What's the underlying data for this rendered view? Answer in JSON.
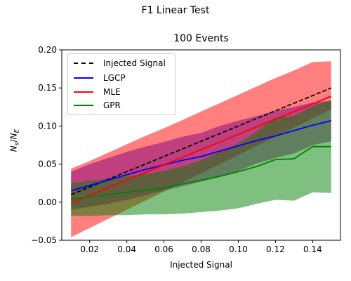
{
  "figure": {
    "suptitle": "F1 Linear Test"
  },
  "chart_data": {
    "type": "line",
    "title": "100 Events",
    "xlabel": "Injected Signal",
    "ylabel": "N_s/N_E",
    "xlim": [
      0.005,
      0.155
    ],
    "ylim": [
      -0.05,
      0.2
    ],
    "xticks": [
      0.02,
      0.04,
      0.06,
      0.08,
      0.1,
      0.12,
      0.14
    ],
    "xtick_labels": [
      "0.02",
      "0.04",
      "0.06",
      "0.08",
      "0.10",
      "0.12",
      "0.14"
    ],
    "yticks": [
      -0.05,
      0.0,
      0.05,
      0.1,
      0.15,
      0.2
    ],
    "ytick_labels": [
      "−0.05",
      "0.00",
      "0.05",
      "0.10",
      "0.15",
      "0.20"
    ],
    "grid": false,
    "legend_position": "top-left",
    "x": [
      0.01,
      0.02,
      0.03,
      0.04,
      0.05,
      0.06,
      0.07,
      0.08,
      0.09,
      0.1,
      0.11,
      0.12,
      0.13,
      0.14,
      0.15
    ],
    "series": [
      {
        "name": "Injected Signal",
        "style": "dashed",
        "color": "#000000",
        "values": [
          0.01,
          0.02,
          0.03,
          0.04,
          0.05,
          0.06,
          0.07,
          0.08,
          0.09,
          0.1,
          0.11,
          0.12,
          0.13,
          0.14,
          0.15
        ]
      },
      {
        "name": "LGCP",
        "style": "solid",
        "color": "#0000ff",
        "band_color": "#800080",
        "values": [
          0.015,
          0.022,
          0.029,
          0.036,
          0.043,
          0.049,
          0.055,
          0.06,
          0.067,
          0.074,
          0.081,
          0.087,
          0.094,
          0.101,
          0.107
        ],
        "lower": [
          -0.01,
          -0.006,
          -0.002,
          0.003,
          0.009,
          0.015,
          0.021,
          0.027,
          0.033,
          0.041,
          0.051,
          0.058,
          0.064,
          0.075,
          0.08
        ],
        "upper": [
          0.04,
          0.05,
          0.058,
          0.066,
          0.073,
          0.079,
          0.086,
          0.091,
          0.1,
          0.107,
          0.113,
          0.12,
          0.125,
          0.131,
          0.133
        ]
      },
      {
        "name": "MLE",
        "style": "solid",
        "color": "#ff0000",
        "band_color": "#ff0000",
        "values": [
          -0.001,
          0.009,
          0.019,
          0.029,
          0.039,
          0.049,
          0.059,
          0.069,
          0.079,
          0.089,
          0.099,
          0.109,
          0.119,
          0.129,
          0.139
        ],
        "lower": [
          -0.046,
          -0.034,
          -0.022,
          -0.01,
          0.002,
          0.014,
          0.026,
          0.038,
          0.05,
          0.062,
          0.074,
          0.086,
          0.098,
          0.11,
          0.122
        ],
        "upper": [
          0.044,
          0.054,
          0.065,
          0.076,
          0.087,
          0.097,
          0.108,
          0.119,
          0.13,
          0.141,
          0.152,
          0.163,
          0.173,
          0.184,
          0.185
        ]
      },
      {
        "name": "GPR",
        "style": "solid",
        "color": "#008000",
        "band_color": "#008000",
        "values": [
          0.004,
          0.007,
          0.01,
          0.013,
          0.016,
          0.019,
          0.024,
          0.029,
          0.034,
          0.04,
          0.047,
          0.056,
          0.057,
          0.073,
          0.073
        ],
        "lower": [
          -0.018,
          -0.018,
          -0.017,
          -0.017,
          -0.016,
          -0.016,
          -0.015,
          -0.013,
          -0.011,
          -0.008,
          -0.002,
          0.003,
          0.002,
          0.013,
          0.012
        ],
        "upper": [
          0.025,
          0.028,
          0.031,
          0.034,
          0.037,
          0.041,
          0.047,
          0.055,
          0.066,
          0.077,
          0.093,
          0.111,
          0.113,
          0.126,
          0.134
        ]
      }
    ]
  }
}
